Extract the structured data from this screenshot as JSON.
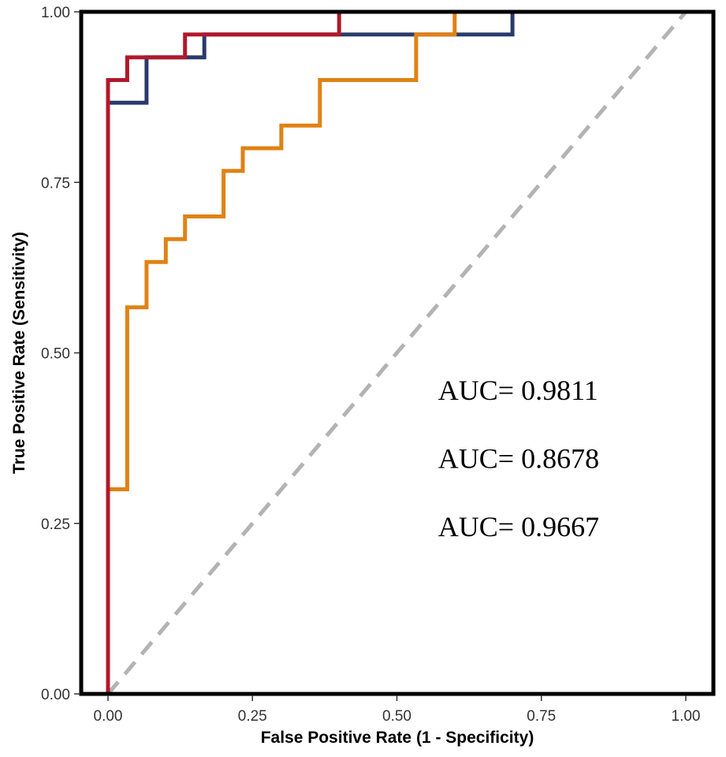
{
  "chart_data": {
    "type": "line",
    "title": "",
    "xlabel": "False Positive Rate (1 - Specificity)",
    "ylabel": "True Positive Rate (Sensitivity)",
    "xlim": [
      0,
      1
    ],
    "ylim": [
      0,
      1
    ],
    "x_ticks": [
      "0.00",
      "0.25",
      "0.50",
      "0.75",
      "1.00"
    ],
    "y_ticks": [
      "0.00",
      "0.25",
      "0.50",
      "0.75",
      "1.00"
    ],
    "grid": false,
    "legend": "none",
    "reference_line": {
      "x": [
        0,
        1
      ],
      "y": [
        0,
        1
      ],
      "style": "dashed",
      "color": "#b3b3b3"
    },
    "series": [
      {
        "color": "#2b3a6b",
        "x": [
          0,
          0,
          0.0667,
          0.0667,
          0.1667,
          0.1667,
          0.7,
          0.7,
          1
        ],
        "y": [
          0,
          0.8667,
          0.8667,
          0.9333,
          0.9333,
          0.9667,
          0.9667,
          1,
          1
        ]
      },
      {
        "color": "#e08214",
        "x": [
          0,
          0,
          0.0333,
          0.0333,
          0.0667,
          0.0667,
          0.1,
          0.1,
          0.1333,
          0.1333,
          0.2,
          0.2,
          0.2333,
          0.2333,
          0.3,
          0.3,
          0.3667,
          0.3667,
          0.5333,
          0.5333,
          0.6,
          0.6,
          1
        ],
        "y": [
          0,
          0.3,
          0.3,
          0.5667,
          0.5667,
          0.6333,
          0.6333,
          0.6667,
          0.6667,
          0.7,
          0.7,
          0.7667,
          0.7667,
          0.8,
          0.8,
          0.8333,
          0.8333,
          0.9,
          0.9,
          0.9667,
          0.9667,
          1,
          1
        ]
      },
      {
        "color": "#b2182b",
        "x": [
          0,
          0,
          0.0333,
          0.0333,
          0.1333,
          0.1333,
          0.4,
          0.4,
          1
        ],
        "y": [
          0,
          0.9,
          0.9,
          0.9333,
          0.9333,
          0.9667,
          0.9667,
          1,
          1
        ]
      }
    ],
    "annotations": [
      {
        "text": "AUC= 0.9811",
        "x": 0.6,
        "y": 0.445
      },
      {
        "text": "AUC= 0.8678",
        "x": 0.6,
        "y": 0.345
      },
      {
        "text": "AUC= 0.9667",
        "x": 0.6,
        "y": 0.245
      }
    ]
  }
}
